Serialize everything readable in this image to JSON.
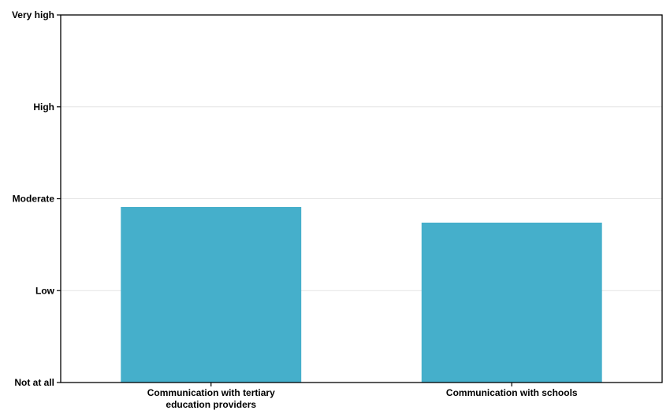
{
  "chart_data": {
    "type": "bar",
    "title": "",
    "xlabel": "",
    "ylabel": "",
    "categories": [
      [
        "Communication with tertiary",
        "education providers"
      ],
      [
        "Communication with schools"
      ]
    ],
    "values": [
      1.91,
      1.74
    ],
    "ylim": [
      0,
      4
    ],
    "yticks": [
      {
        "value": 0,
        "label": "Not at all"
      },
      {
        "value": 1,
        "label": "Low"
      },
      {
        "value": 2,
        "label": "Moderate"
      },
      {
        "value": 3,
        "label": "High"
      },
      {
        "value": 4,
        "label": "Very high"
      }
    ],
    "grid": true,
    "legend": "none",
    "colors": {
      "bar": "#45AFCB",
      "grid": "#e3e3e3",
      "axis": "#000000"
    }
  }
}
